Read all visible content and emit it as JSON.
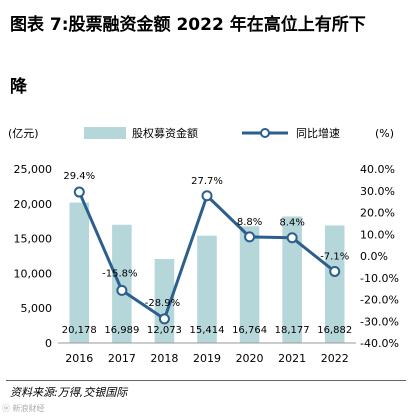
{
  "figure": {
    "title_line1": "图表 7:股票融资金额 2022 年在高位上有所下",
    "title_line2": "降",
    "source": "资料来源:万得,交银国际",
    "watermark": "ⓦ 新浪财经"
  },
  "colors": {
    "bar": "#b5d7d9",
    "line": "#2c5f8e",
    "marker_fill": "#ffffff",
    "grid": "#d9d9d9"
  },
  "chart_data": {
    "type": "bar",
    "categories": [
      "2016",
      "2017",
      "2018",
      "2019",
      "2020",
      "2021",
      "2022"
    ],
    "series": [
      {
        "name": "股权募资金额",
        "type": "bar",
        "axis": "left",
        "values": [
          20178,
          16989,
          12073,
          15414,
          16764,
          18177,
          16882
        ],
        "labels": [
          "20,178",
          "16,989",
          "12,073",
          "15,414",
          "16,764",
          "18,177",
          "16,882"
        ]
      },
      {
        "name": "同比增速",
        "type": "line",
        "axis": "right",
        "values": [
          29.4,
          -15.8,
          -28.9,
          27.7,
          8.8,
          8.4,
          -7.1
        ],
        "labels": [
          "29.4%",
          "-15.8%",
          "-28.9%",
          "27.7%",
          "8.8%",
          "8.4%",
          "-7.1%"
        ]
      }
    ],
    "left_axis": {
      "label": "(亿元)",
      "min": 0,
      "max": 25000,
      "step": 5000,
      "ticks": [
        "0",
        "5,000",
        "10,000",
        "15,000",
        "20,000",
        "25,000"
      ]
    },
    "right_axis": {
      "label": "(%)",
      "min": -40,
      "max": 40,
      "step": 10,
      "ticks": [
        "-40.0%",
        "-30.0%",
        "-20.0%",
        "-10.0%",
        "0.0%",
        "10.0%",
        "20.0%",
        "30.0%",
        "40.0%"
      ]
    },
    "legend_position": "top",
    "grid": false
  }
}
